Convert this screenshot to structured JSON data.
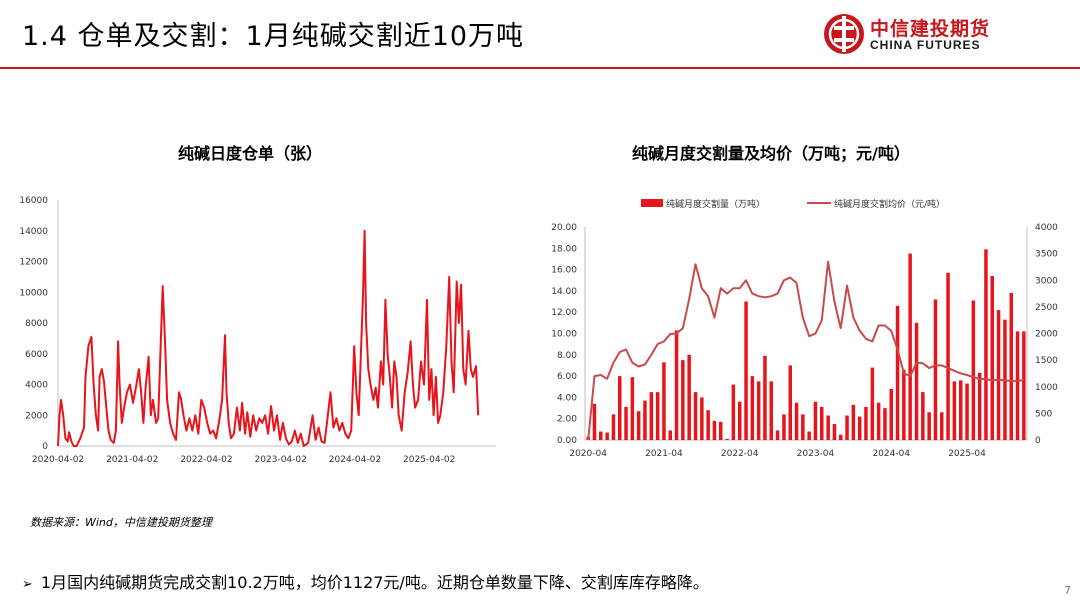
{
  "header": {
    "title": "1.4 仓单及交割：1月纯碱交割近10万吨",
    "logo_cn": "中信建投期货",
    "logo_en": "CHINA FUTURES"
  },
  "colors": {
    "accent": "#c8161d",
    "bar": "#e8141c",
    "line": "#c84a4a"
  },
  "chart_data": [
    {
      "type": "area",
      "title": "纯碱日度仓单（张）",
      "ylim": [
        0,
        16000
      ],
      "y_ticks": [
        "16000",
        "14000",
        "12000",
        "10000",
        "8000",
        "6000",
        "4000",
        "2000",
        "0"
      ],
      "x_ticks": [
        "2020-04-02",
        "2021-04-02",
        "2022-04-02",
        "2023-04-02",
        "2024-04-02",
        "2025-04-02"
      ],
      "x_range_years": [
        2020.25,
        2026.15
      ],
      "series": [
        {
          "name": "纯碱日度仓单",
          "points": [
            [
              2020.25,
              0
            ],
            [
              2020.27,
              2000
            ],
            [
              2020.29,
              3000
            ],
            [
              2020.32,
              2000
            ],
            [
              2020.35,
              500
            ],
            [
              2020.38,
              300
            ],
            [
              2020.4,
              900
            ],
            [
              2020.43,
              300
            ],
            [
              2020.46,
              0
            ],
            [
              2020.5,
              0
            ],
            [
              2020.55,
              500
            ],
            [
              2020.6,
              1200
            ],
            [
              2020.62,
              4500
            ],
            [
              2020.66,
              6500
            ],
            [
              2020.7,
              7100
            ],
            [
              2020.73,
              4000
            ],
            [
              2020.76,
              2000
            ],
            [
              2020.79,
              1000
            ],
            [
              2020.81,
              4500
            ],
            [
              2020.84,
              5000
            ],
            [
              2020.87,
              4200
            ],
            [
              2020.9,
              2500
            ],
            [
              2020.93,
              1000
            ],
            [
              2020.96,
              400
            ],
            [
              2021.0,
              200
            ],
            [
              2021.03,
              1000
            ],
            [
              2021.06,
              6800
            ],
            [
              2021.08,
              4000
            ],
            [
              2021.11,
              1500
            ],
            [
              2021.14,
              2500
            ],
            [
              2021.18,
              3500
            ],
            [
              2021.22,
              4000
            ],
            [
              2021.26,
              2800
            ],
            [
              2021.3,
              3800
            ],
            [
              2021.34,
              5000
            ],
            [
              2021.37,
              3500
            ],
            [
              2021.4,
              1500
            ],
            [
              2021.43,
              3800
            ],
            [
              2021.47,
              5800
            ],
            [
              2021.5,
              2000
            ],
            [
              2021.53,
              3000
            ],
            [
              2021.57,
              1500
            ],
            [
              2021.6,
              1800
            ],
            [
              2021.63,
              6000
            ],
            [
              2021.66,
              10400
            ],
            [
              2021.69,
              7000
            ],
            [
              2021.72,
              3000
            ],
            [
              2021.76,
              1500
            ],
            [
              2021.8,
              800
            ],
            [
              2021.84,
              400
            ],
            [
              2021.88,
              3500
            ],
            [
              2021.91,
              3000
            ],
            [
              2021.94,
              2000
            ],
            [
              2021.98,
              1000
            ],
            [
              2022.02,
              1800
            ],
            [
              2022.06,
              1000
            ],
            [
              2022.1,
              2000
            ],
            [
              2022.14,
              800
            ],
            [
              2022.18,
              3000
            ],
            [
              2022.22,
              2500
            ],
            [
              2022.26,
              1500
            ],
            [
              2022.3,
              800
            ],
            [
              2022.34,
              1000
            ],
            [
              2022.38,
              500
            ],
            [
              2022.42,
              1600
            ],
            [
              2022.46,
              3000
            ],
            [
              2022.5,
              7200
            ],
            [
              2022.52,
              3500
            ],
            [
              2022.55,
              1500
            ],
            [
              2022.58,
              500
            ],
            [
              2022.62,
              800
            ],
            [
              2022.66,
              2500
            ],
            [
              2022.7,
              1000
            ],
            [
              2022.73,
              2800
            ],
            [
              2022.77,
              800
            ],
            [
              2022.8,
              2200
            ],
            [
              2022.84,
              600
            ],
            [
              2022.88,
              2000
            ],
            [
              2022.92,
              1000
            ],
            [
              2022.96,
              1800
            ],
            [
              2023.0,
              1500
            ],
            [
              2023.04,
              2000
            ],
            [
              2023.08,
              800
            ],
            [
              2023.12,
              2600
            ],
            [
              2023.16,
              1000
            ],
            [
              2023.2,
              2000
            ],
            [
              2023.24,
              400
            ],
            [
              2023.28,
              1500
            ],
            [
              2023.32,
              500
            ],
            [
              2023.36,
              100
            ],
            [
              2023.4,
              300
            ],
            [
              2023.44,
              1000
            ],
            [
              2023.48,
              200
            ],
            [
              2023.52,
              800
            ],
            [
              2023.56,
              0
            ],
            [
              2023.62,
              200
            ],
            [
              2023.68,
              2000
            ],
            [
              2023.72,
              400
            ],
            [
              2023.76,
              1200
            ],
            [
              2023.8,
              300
            ],
            [
              2023.84,
              200
            ],
            [
              2023.88,
              1800
            ],
            [
              2023.92,
              3500
            ],
            [
              2023.96,
              1200
            ],
            [
              2024.0,
              1800
            ],
            [
              2024.04,
              1000
            ],
            [
              2024.08,
              1500
            ],
            [
              2024.12,
              800
            ],
            [
              2024.16,
              500
            ],
            [
              2024.2,
              1000
            ],
            [
              2024.24,
              6500
            ],
            [
              2024.27,
              3500
            ],
            [
              2024.3,
              2000
            ],
            [
              2024.33,
              6000
            ],
            [
              2024.36,
              10000
            ],
            [
              2024.38,
              14000
            ],
            [
              2024.4,
              8000
            ],
            [
              2024.43,
              5000
            ],
            [
              2024.46,
              4000
            ],
            [
              2024.5,
              3000
            ],
            [
              2024.53,
              3800
            ],
            [
              2024.56,
              2500
            ],
            [
              2024.6,
              5500
            ],
            [
              2024.63,
              4000
            ],
            [
              2024.66,
              9500
            ],
            [
              2024.69,
              6000
            ],
            [
              2024.72,
              4500
            ],
            [
              2024.75,
              2500
            ],
            [
              2024.78,
              5500
            ],
            [
              2024.81,
              4500
            ],
            [
              2024.84,
              2000
            ],
            [
              2024.88,
              1000
            ],
            [
              2024.92,
              3500
            ],
            [
              2024.96,
              4800
            ],
            [
              2025.0,
              6800
            ],
            [
              2025.03,
              4000
            ],
            [
              2025.06,
              2500
            ],
            [
              2025.1,
              3000
            ],
            [
              2025.14,
              5500
            ],
            [
              2025.18,
              4000
            ],
            [
              2025.22,
              9500
            ],
            [
              2025.25,
              3000
            ],
            [
              2025.28,
              5000
            ],
            [
              2025.31,
              2000
            ],
            [
              2025.34,
              4500
            ],
            [
              2025.37,
              1500
            ],
            [
              2025.4,
              2000
            ],
            [
              2025.44,
              3500
            ],
            [
              2025.48,
              6500
            ],
            [
              2025.52,
              11000
            ],
            [
              2025.55,
              5500
            ],
            [
              2025.58,
              3500
            ],
            [
              2025.62,
              10700
            ],
            [
              2025.65,
              8000
            ],
            [
              2025.68,
              10500
            ],
            [
              2025.71,
              5000
            ],
            [
              2025.74,
              4000
            ],
            [
              2025.78,
              7500
            ],
            [
              2025.81,
              5000
            ],
            [
              2025.84,
              4500
            ],
            [
              2025.88,
              5200
            ],
            [
              2025.91,
              2000
            ]
          ]
        }
      ]
    },
    {
      "type": "bar+line",
      "title": "纯碱月度交割量及均价（万吨；元/吨）",
      "legend": [
        "纯碱月度交割量（万吨）",
        "纯碱月度交割均价（元/吨）"
      ],
      "ylim_left": [
        0,
        20
      ],
      "ylim_right": [
        0,
        4000
      ],
      "y_ticks_left": [
        "20.00",
        "18.00",
        "16.00",
        "14.00",
        "12.00",
        "10.00",
        "8.00",
        "6.00",
        "4.00",
        "2.00",
        "0.00"
      ],
      "y_ticks_right": [
        "4000",
        "3500",
        "3000",
        "2500",
        "2000",
        "1500",
        "1000",
        "500",
        "0"
      ],
      "x_ticks": [
        "2020-04",
        "2021-04",
        "2022-04",
        "2023-04",
        "2024-04",
        "2025-04"
      ],
      "months": [
        "2020-04",
        "2020-05",
        "2020-06",
        "2020-07",
        "2020-08",
        "2020-09",
        "2020-10",
        "2020-11",
        "2020-12",
        "2021-01",
        "2021-02",
        "2021-03",
        "2021-04",
        "2021-05",
        "2021-06",
        "2021-07",
        "2021-08",
        "2021-09",
        "2021-10",
        "2021-11",
        "2021-12",
        "2022-01",
        "2022-02",
        "2022-03",
        "2022-04",
        "2022-05",
        "2022-06",
        "2022-07",
        "2022-08",
        "2022-09",
        "2022-10",
        "2022-11",
        "2022-12",
        "2023-01",
        "2023-02",
        "2023-03",
        "2023-04",
        "2023-05",
        "2023-06",
        "2023-07",
        "2023-08",
        "2023-09",
        "2023-10",
        "2023-11",
        "2023-12",
        "2024-01",
        "2024-02",
        "2024-03",
        "2024-04",
        "2024-05",
        "2024-06",
        "2024-07",
        "2024-08",
        "2024-09",
        "2024-10",
        "2024-11",
        "2024-12",
        "2025-01",
        "2025-02",
        "2025-03",
        "2025-04",
        "2025-05",
        "2025-06",
        "2025-07",
        "2025-08",
        "2025-09",
        "2025-10",
        "2025-11",
        "2025-12",
        "2026-01"
      ],
      "series": [
        {
          "name": "纯碱月度交割量（万吨）",
          "values": [
            0.3,
            3.4,
            0.8,
            0.7,
            2.4,
            6.0,
            3.1,
            5.9,
            2.7,
            3.7,
            4.5,
            4.5,
            7.3,
            0.9,
            10.3,
            7.5,
            8.0,
            4.5,
            4.0,
            2.8,
            1.8,
            1.7,
            0.1,
            5.2,
            3.6,
            13.0,
            6.0,
            5.5,
            7.9,
            5.5,
            0.9,
            2.4,
            7.0,
            3.5,
            2.4,
            0.8,
            3.6,
            3.1,
            2.3,
            1.5,
            0.5,
            2.3,
            3.3,
            2.2,
            3.1,
            6.8,
            3.5,
            3.0,
            4.8,
            12.6,
            6.6,
            17.5,
            11.0,
            4.5,
            2.6,
            13.2,
            2.6,
            15.7,
            5.5,
            5.6,
            5.3,
            13.1,
            6.3,
            17.9,
            15.4,
            12.2,
            11.3,
            13.8,
            10.2,
            10.2
          ]
        },
        {
          "name": "纯碱月度交割均价（元/吨）",
          "values": [
            0,
            1200,
            1220,
            1150,
            1450,
            1650,
            1700,
            1450,
            1380,
            1420,
            1600,
            1800,
            1850,
            1990,
            2000,
            2100,
            2650,
            3300,
            2850,
            2700,
            2300,
            2850,
            2750,
            2850,
            2850,
            3000,
            2750,
            2700,
            2680,
            2700,
            2750,
            3000,
            3050,
            2950,
            2300,
            1950,
            2000,
            2250,
            3350,
            2600,
            2100,
            2900,
            2300,
            2050,
            1900,
            1850,
            2150,
            2150,
            2050,
            1700,
            1250,
            1200,
            1450,
            1440,
            1350,
            1400,
            1400,
            1350,
            1300,
            1250,
            1220,
            1180,
            1150,
            1140,
            1120,
            1130,
            1120,
            1110,
            1110,
            1127
          ]
        }
      ]
    }
  ],
  "source_note": "数据来源：Wind，中信建投期货整理",
  "bullet_text": "1月国内纯碱期货完成交割10.2万吨，均价1127元/吨。近期仓单数量下降、交割库库存略降。",
  "page_number": "7"
}
